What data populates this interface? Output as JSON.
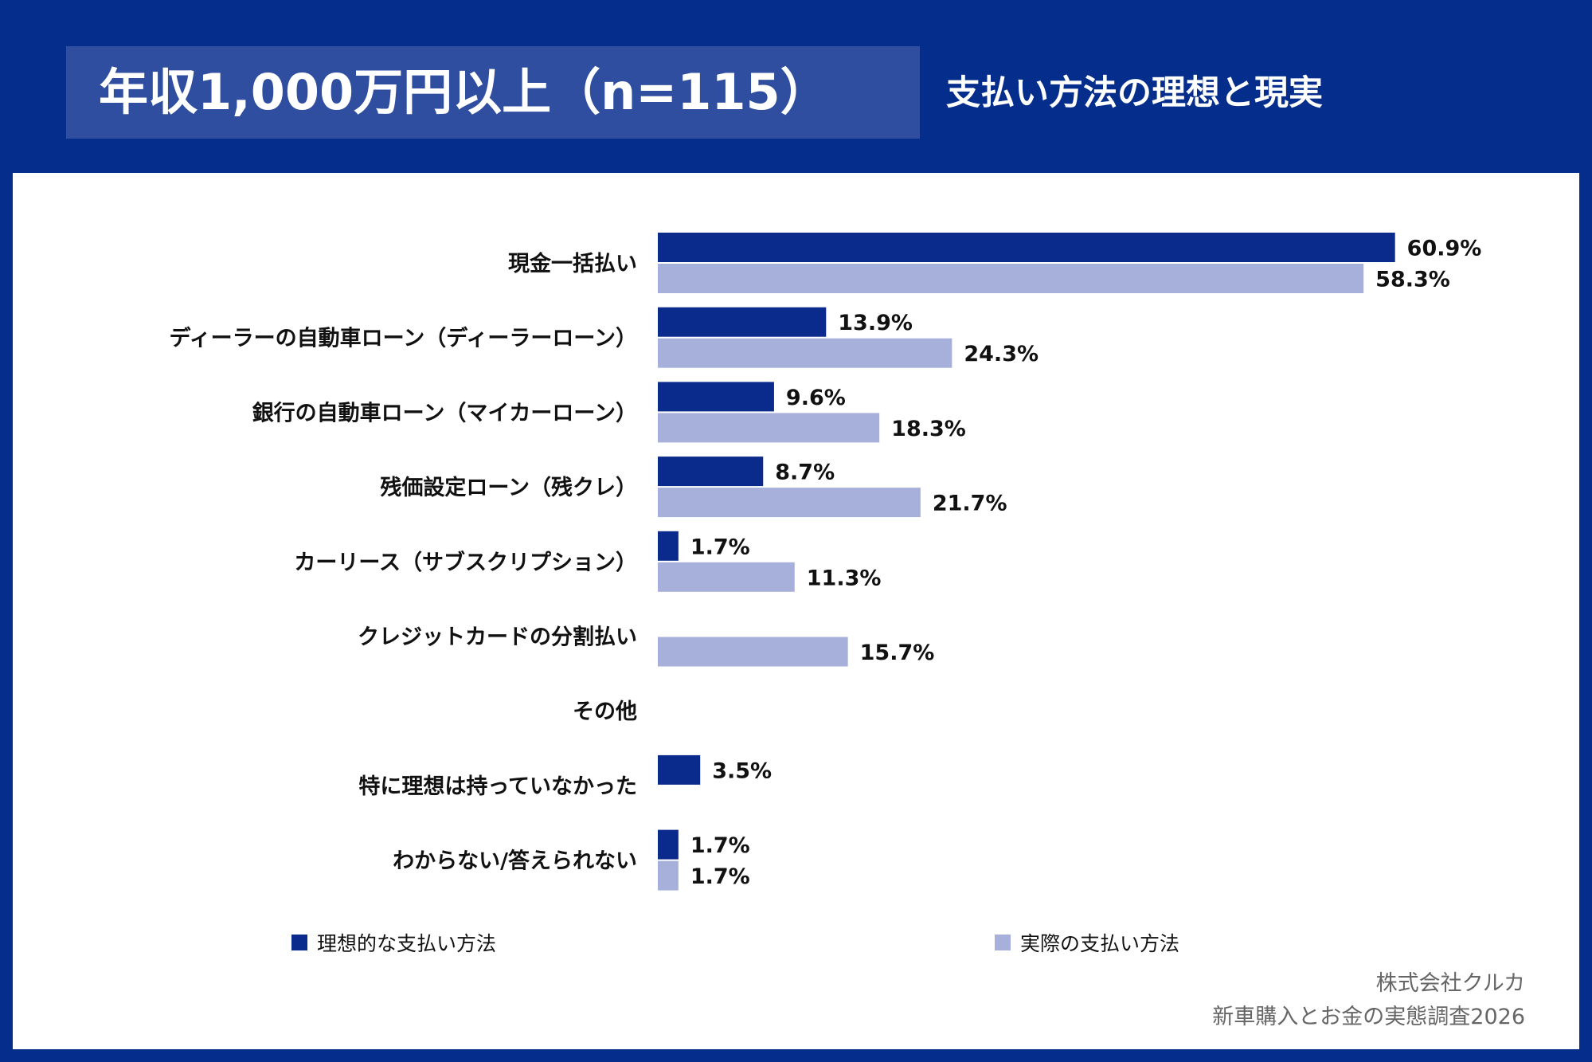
{
  "header": {
    "title": "年収1,000万円以上（n=115）",
    "subtitle": "支払い方法の理想と現実"
  },
  "colors": {
    "background": "#052d8b",
    "title_box": "#2f4ea0",
    "ideal": "#0a2a8c",
    "actual": "#a6b0da"
  },
  "chart_data": {
    "type": "bar",
    "orientation": "horizontal",
    "unit": "%",
    "categories": [
      "現金一括払い",
      "ディーラーの自動車ローン（ディーラーローン）",
      "銀行の自動車ローン（マイカーローン）",
      "残価設定ローン（残クレ）",
      "カーリース（サブスクリプション）",
      "クレジットカードの分割払い",
      "その他",
      "特に理想は持っていなかった",
      "わからない/答えられない"
    ],
    "series": [
      {
        "name": "理想的な支払い方法",
        "color": "#0a2a8c",
        "values": [
          60.9,
          13.9,
          9.6,
          8.7,
          1.7,
          null,
          null,
          3.5,
          1.7
        ],
        "labels": [
          "60.9%",
          "13.9%",
          "9.6%",
          "8.7%",
          "1.7%",
          null,
          null,
          "3.5%",
          "1.7%"
        ]
      },
      {
        "name": "実際の支払い方法",
        "color": "#a6b0da",
        "values": [
          58.3,
          24.3,
          18.3,
          21.7,
          11.3,
          15.7,
          null,
          null,
          1.7
        ],
        "labels": [
          "58.3%",
          "24.3%",
          "18.3%",
          "21.7%",
          "11.3%",
          "15.7%",
          null,
          null,
          "1.7%"
        ]
      }
    ],
    "xlim": [
      0,
      100
    ],
    "legend_position": "bottom",
    "grid": false
  },
  "legend": {
    "ideal_label": "理想的な支払い方法",
    "actual_label": "実際の支払い方法"
  },
  "source": {
    "company": "株式会社クルカ",
    "survey": "新車購入とお金の実態調査2026"
  }
}
